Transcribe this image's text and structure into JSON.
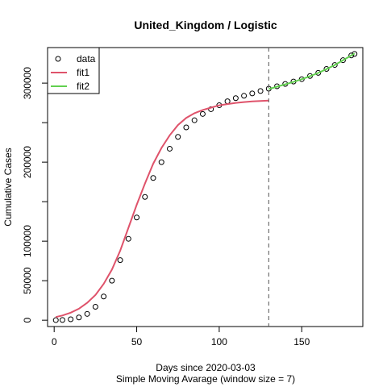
{
  "chart_data": {
    "type": "scatter",
    "title": "United_Kingdom / Logistic",
    "xlabel": "Days since 2020-03-03",
    "subtitle": "Simple Moving Avarage (window size = 7)",
    "ylabel": "Cumulative Cases",
    "xlim": [
      -4,
      187
    ],
    "ylim": [
      -8000,
      345000
    ],
    "x_ticks": [
      0,
      50,
      100,
      150
    ],
    "y_ticks": [
      0,
      50000,
      100000,
      150000,
      200000,
      250000,
      300000
    ],
    "y_tick_labels": [
      "0",
      "50000",
      "100000",
      "",
      "200000",
      "",
      "300000"
    ],
    "vline_x": 130,
    "legend_position": "top-left",
    "series": [
      {
        "name": "data",
        "color": "#000000",
        "marker": "open-circle",
        "points": [
          [
            1,
            100
          ],
          [
            5,
            300
          ],
          [
            10,
            1200
          ],
          [
            15,
            3500
          ],
          [
            20,
            8000
          ],
          [
            25,
            17000
          ],
          [
            30,
            30000
          ],
          [
            35,
            50000
          ],
          [
            40,
            76000
          ],
          [
            45,
            103000
          ],
          [
            50,
            130000
          ],
          [
            55,
            156000
          ],
          [
            60,
            180000
          ],
          [
            65,
            200000
          ],
          [
            70,
            217000
          ],
          [
            75,
            232000
          ],
          [
            80,
            244000
          ],
          [
            85,
            253000
          ],
          [
            90,
            261000
          ],
          [
            95,
            267000
          ],
          [
            100,
            272000
          ],
          [
            105,
            277000
          ],
          [
            110,
            281000
          ],
          [
            115,
            284000
          ],
          [
            120,
            287000
          ],
          [
            125,
            290000
          ],
          [
            130,
            293000
          ],
          [
            135,
            296000
          ],
          [
            140,
            299000
          ],
          [
            145,
            302000
          ],
          [
            150,
            305000
          ],
          [
            155,
            309000
          ],
          [
            160,
            313000
          ],
          [
            165,
            318000
          ],
          [
            170,
            323000
          ],
          [
            175,
            329000
          ],
          [
            180,
            335000
          ],
          [
            182,
            337000
          ]
        ]
      },
      {
        "name": "fit1",
        "color": "#df536b",
        "points": [
          [
            1,
            4000
          ],
          [
            5,
            6000
          ],
          [
            10,
            9500
          ],
          [
            15,
            14500
          ],
          [
            20,
            22000
          ],
          [
            25,
            32000
          ],
          [
            30,
            46000
          ],
          [
            35,
            64000
          ],
          [
            40,
            88000
          ],
          [
            45,
            117000
          ],
          [
            50,
            146000
          ],
          [
            55,
            173000
          ],
          [
            60,
            198000
          ],
          [
            65,
            218000
          ],
          [
            70,
            234000
          ],
          [
            75,
            247000
          ],
          [
            80,
            256000
          ],
          [
            85,
            262000
          ],
          [
            90,
            266000
          ],
          [
            95,
            269000
          ],
          [
            100,
            272000
          ],
          [
            105,
            273500
          ],
          [
            110,
            275000
          ],
          [
            115,
            276000
          ],
          [
            120,
            277000
          ],
          [
            125,
            277500
          ],
          [
            130,
            278000
          ]
        ]
      },
      {
        "name": "fit2",
        "color": "#61d04f",
        "points": [
          [
            130,
            292500
          ],
          [
            135,
            295500
          ],
          [
            140,
            298500
          ],
          [
            145,
            301500
          ],
          [
            150,
            305000
          ],
          [
            155,
            308800
          ],
          [
            160,
            313000
          ],
          [
            165,
            317800
          ],
          [
            170,
            323000
          ],
          [
            175,
            329000
          ],
          [
            180,
            335000
          ],
          [
            182,
            337500
          ]
        ]
      }
    ]
  }
}
